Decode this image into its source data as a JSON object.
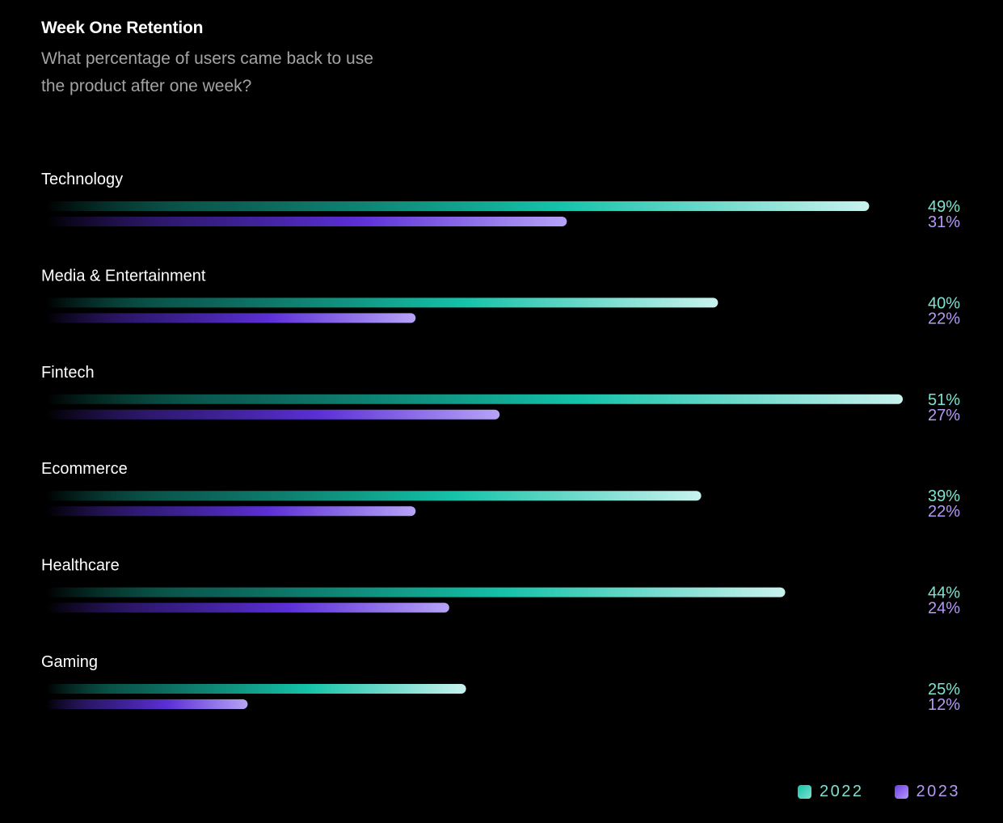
{
  "chart_data": {
    "type": "bar",
    "orientation": "horizontal",
    "title": "Week One Retention",
    "subtitle": "What percentage of users came back to use the product after one week?",
    "categories": [
      "Technology",
      "Media & Entertainment",
      "Fintech",
      "Ecommerce",
      "Healthcare",
      "Gaming"
    ],
    "series": [
      {
        "name": "2022",
        "values": [
          49,
          40,
          51,
          39,
          44,
          25
        ],
        "color": "#7ee2d0"
      },
      {
        "name": "2023",
        "values": [
          31,
          22,
          27,
          22,
          24,
          12
        ],
        "color": "#b49af5"
      }
    ],
    "value_labels": {
      "2022": [
        "49%",
        "40%",
        "51%",
        "39%",
        "44%",
        "25%"
      ],
      "2023": [
        "31%",
        "22%",
        "27%",
        "22%",
        "24%",
        "12%"
      ]
    },
    "xlim": [
      0,
      51
    ],
    "legend": "bottom-right",
    "grid": false
  },
  "colors": {
    "background": "#000000",
    "series_2022_bright": "#14c2a8",
    "series_2022_end": "#c8f2ee",
    "series_2023_bright": "#5b2fd6",
    "series_2023_end": "#b6a3f7"
  }
}
